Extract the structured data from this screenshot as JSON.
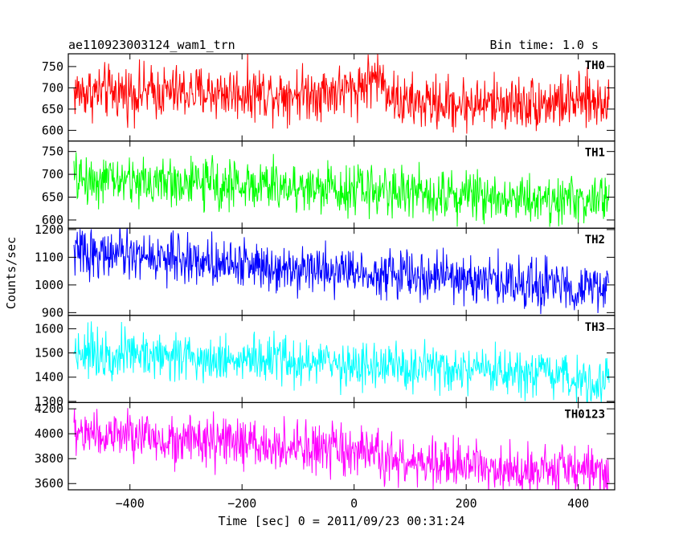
{
  "chart_data": {
    "type": "line",
    "title_left": "ae110923003124_wam1_trn",
    "title_right": "Bin time: 1.0 s",
    "xlabel": "Time [sec] 0 = 2011/09/23 00:31:24",
    "ylabel": "Counts/sec",
    "xlim": [
      -510,
      465
    ],
    "x_range": [
      -500,
      455
    ],
    "x_ticks": [
      -400,
      -200,
      0,
      200,
      400
    ],
    "x_tick_labels": [
      "−400",
      "−200",
      "0",
      "200",
      "400"
    ],
    "panels": [
      {
        "name": "TH0",
        "color": "#ff0000",
        "ylim": [
          575,
          780
        ],
        "yticks": [
          600,
          650,
          700,
          750
        ],
        "yticklabels": [
          "600",
          "650",
          "700",
          "750"
        ],
        "trend": [
          [
            -500,
            690
          ],
          [
            -100,
            688
          ],
          [
            0,
            695
          ],
          [
            40,
            730
          ],
          [
            80,
            665
          ],
          [
            200,
            662
          ],
          [
            455,
            668
          ]
        ],
        "noise": 35
      },
      {
        "name": "TH1",
        "color": "#00ff00",
        "ylim": [
          582,
          773
        ],
        "yticks": [
          600,
          650,
          700,
          750
        ],
        "yticklabels": [
          "600",
          "650",
          "700",
          "750"
        ],
        "trend": [
          [
            -500,
            690
          ],
          [
            0,
            668
          ],
          [
            455,
            640
          ]
        ],
        "noise": 30
      },
      {
        "name": "TH2",
        "color": "#0000ff",
        "ylim": [
          890,
          1205
        ],
        "yticks": [
          900,
          1000,
          1100,
          1200
        ],
        "yticklabels": [
          "900",
          "1000",
          "1100",
          "1200"
        ],
        "trend": [
          [
            -500,
            1120
          ],
          [
            0,
            1050
          ],
          [
            455,
            985
          ]
        ],
        "noise": 48
      },
      {
        "name": "TH3",
        "color": "#00ffff",
        "ylim": [
          1295,
          1655
        ],
        "yticks": [
          1300,
          1400,
          1500,
          1600
        ],
        "yticklabels": [
          "1300",
          "1400",
          "1500",
          "1600"
        ],
        "trend": [
          [
            -500,
            1510
          ],
          [
            0,
            1450
          ],
          [
            455,
            1385
          ]
        ],
        "noise": 55
      },
      {
        "name": "TH0123",
        "color": "#ff00ff",
        "ylim": [
          3550,
          4250
        ],
        "yticks": [
          3600,
          3800,
          4000,
          4200
        ],
        "yticklabels": [
          "3600",
          "3800",
          "4000",
          "4200"
        ],
        "trend": [
          [
            -500,
            4010
          ],
          [
            0,
            3850
          ],
          [
            100,
            3760
          ],
          [
            455,
            3700
          ]
        ],
        "noise": 110
      }
    ]
  }
}
